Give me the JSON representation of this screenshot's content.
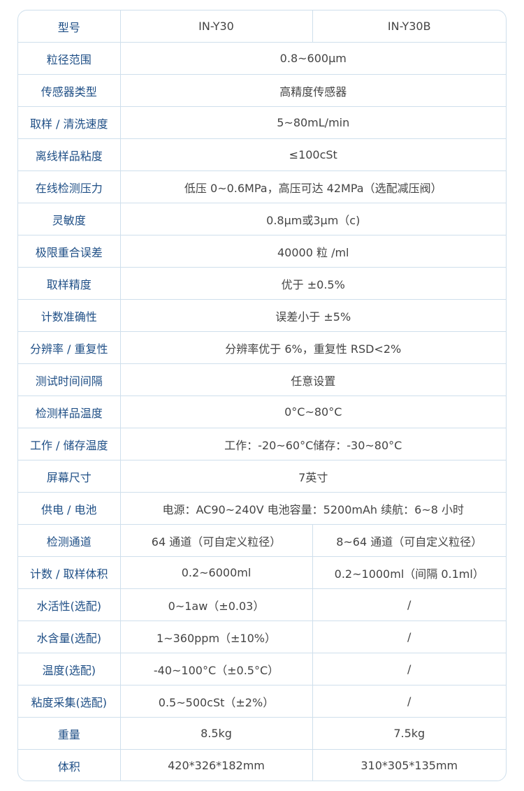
{
  "colors": {
    "label": "#1f4f86",
    "value": "#444444",
    "border": "#cfdfec"
  },
  "rows": [
    {
      "label": "型号",
      "values": [
        "IN-Y30",
        "IN-Y30B"
      ]
    },
    {
      "label": "粒径范围",
      "values": [
        "0.8~600µm"
      ]
    },
    {
      "label": "传感器类型",
      "values": [
        "高精度传感器"
      ]
    },
    {
      "label": "取样 / 清洗速度",
      "values": [
        "5~80mL/min"
      ]
    },
    {
      "label": "离线样品粘度",
      "values": [
        "≤100cSt"
      ]
    },
    {
      "label": "在线检测压力",
      "values": [
        "低压 0~0.6MPa，高压可达 42MPa（选配减压阀）"
      ]
    },
    {
      "label": "灵敏度",
      "values": [
        "0.8µm或3µm（c)"
      ]
    },
    {
      "label": "极限重合误差",
      "values": [
        "40000 粒 /ml"
      ]
    },
    {
      "label": "取样精度",
      "values": [
        "优于 ±0.5%"
      ]
    },
    {
      "label": "计数准确性",
      "values": [
        "误差小于 ±5%"
      ]
    },
    {
      "label": "分辨率 / 重复性",
      "values": [
        "分辨率优于 6%，重复性 RSD<2%"
      ]
    },
    {
      "label": "测试时间间隔",
      "values": [
        "任意设置"
      ]
    },
    {
      "label": "检测样品温度",
      "values": [
        "0°C~80°C"
      ]
    },
    {
      "label": "工作 / 储存温度",
      "values": [
        "工作：-20~60°C储存：-30~80°C"
      ]
    },
    {
      "label": "屏幕尺寸",
      "values": [
        "7英寸"
      ]
    },
    {
      "label": "供电 / 电池",
      "values": [
        "电源：AC90~240V  电池容量：5200mAh  续航：6~8 小时"
      ]
    },
    {
      "label": "检测通道",
      "values": [
        "64 通道（可自定义粒径）",
        "8~64 通道（可自定义粒径）"
      ]
    },
    {
      "label": "计数 / 取样体积",
      "values": [
        "0.2~6000ml",
        "0.2~1000ml（间隔 0.1ml）"
      ]
    },
    {
      "label": "水活性(选配)",
      "values": [
        "0~1aw（±0.03）",
        "/"
      ]
    },
    {
      "label": "水含量(选配)",
      "values": [
        "1~360ppm（±10%）",
        "/"
      ]
    },
    {
      "label": "温度(选配)",
      "values": [
        "-40~100°C（±0.5°C）",
        "/"
      ]
    },
    {
      "label": "粘度采集(选配)",
      "values": [
        "0.5~500cSt（±2%）",
        "/"
      ]
    },
    {
      "label": "重量",
      "values": [
        "8.5kg",
        "7.5kg"
      ]
    },
    {
      "label": "体积",
      "values": [
        "420*326*182mm",
        "310*305*135mm"
      ]
    }
  ]
}
